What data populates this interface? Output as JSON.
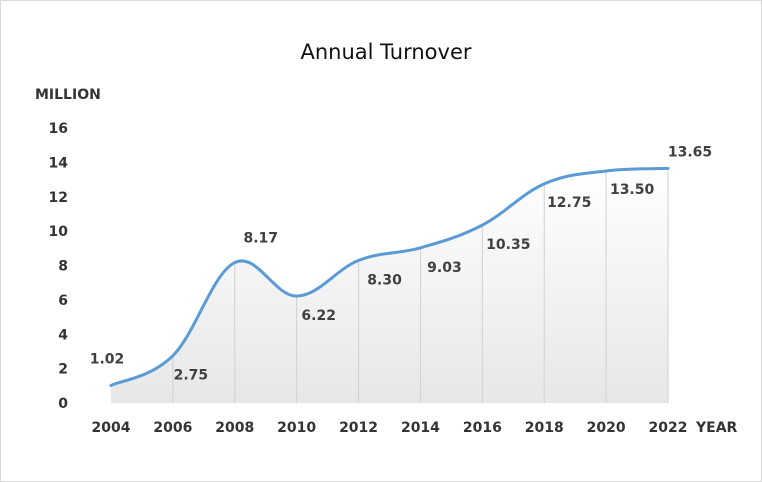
{
  "chart_data": {
    "type": "area",
    "title": "Annual Turnover",
    "ylabel": "MILLION",
    "xlabel": "YEAR",
    "categories": [
      "2004",
      "2006",
      "2008",
      "2010",
      "2012",
      "2014",
      "2016",
      "2018",
      "2020",
      "2022"
    ],
    "series": [
      {
        "values": [
          1.02,
          2.75,
          8.17,
          6.22,
          8.3,
          9.03,
          10.35,
          12.75,
          13.5,
          13.65
        ]
      }
    ],
    "data_labels": [
      "1.02",
      "2.75",
      "8.17",
      "6.22",
      "8.30",
      "9.03",
      "10.35",
      "12.75",
      "13.50",
      "13.65"
    ],
    "y_ticks": [
      "0",
      "2",
      "4",
      "6",
      "8",
      "10",
      "12",
      "14",
      "16"
    ],
    "ylim": [
      0,
      16
    ],
    "grid": false,
    "line_color": "#5b9bd5",
    "fill_gradient": [
      "#ffffff",
      "#e7e7e7"
    ],
    "drop_line_color": "#d0d0d0"
  }
}
